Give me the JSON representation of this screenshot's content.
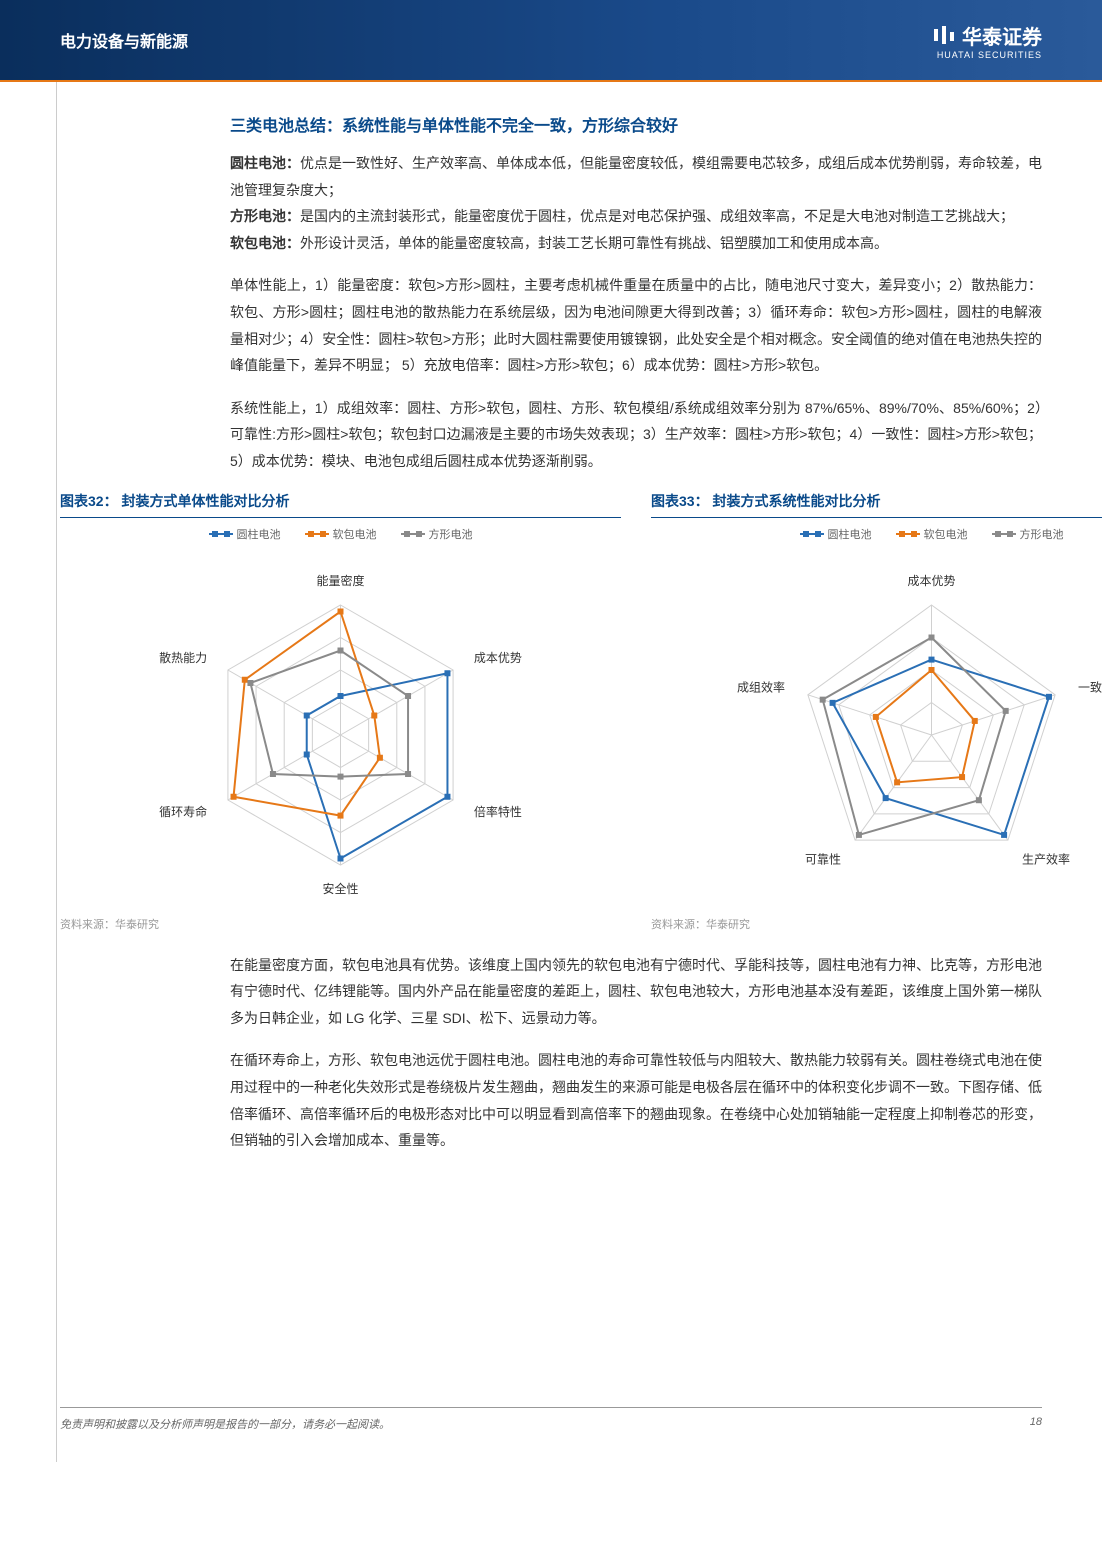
{
  "header": {
    "title": "电力设备与新能源",
    "logo_text": "华泰证券",
    "logo_sub": "HUATAI SECURITIES"
  },
  "section_title": "三类电池总结：系统性能与单体性能不完全一致，方形综合较好",
  "p1_label1": "圆柱电池：",
  "p1_text1": "优点是一致性好、生产效率高、单体成本低，但能量密度较低，模组需要电芯较多，成组后成本优势削弱，寿命较差，电池管理复杂度大；",
  "p1_label2": "方形电池：",
  "p1_text2": "是国内的主流封装形式，能量密度优于圆柱，优点是对电芯保护强、成组效率高，不足是大电池对制造工艺挑战大；",
  "p1_label3": "软包电池：",
  "p1_text3": "外形设计灵活，单体的能量密度较高，封装工艺长期可靠性有挑战、铝塑膜加工和使用成本高。",
  "p2": "单体性能上，1）能量密度：软包>方形>圆柱，主要考虑机械件重量在质量中的占比，随电池尺寸变大，差异变小；2）散热能力：软包、方形>圆柱；圆柱电池的散热能力在系统层级，因为电池间隙更大得到改善；3）循环寿命：软包>方形>圆柱，圆柱的电解液量相对少；4）安全性：圆柱>软包>方形；此时大圆柱需要使用镀镍钢，此处安全是个相对概念。安全阈值的绝对值在电池热失控的峰值能量下，差异不明显； 5）充放电倍率：圆柱>方形>软包；6）成本优势：圆柱>方形>软包。",
  "p3": "系统性能上，1）成组效率：圆柱、方形>软包，圆柱、方形、软包模组/系统成组效率分别为 87%/65%、89%/70%、85%/60%；2）可靠性:方形>圆柱>软包；软包封口边漏液是主要的市场失效表现；3）生产效率：圆柱>方形>软包；4）一致性：圆柱>方形>软包；5）成本优势：模块、电池包成组后圆柱成本优势逐渐削弱。",
  "p4": "在能量密度方面，软包电池具有优势。该维度上国内领先的软包电池有宁德时代、孚能科技等，圆柱电池有力神、比克等，方形电池有宁德时代、亿纬锂能等。国内外产品在能量密度的差距上，圆柱、软包电池较大，方形电池基本没有差距，该维度上国外第一梯队多为日韩企业，如 LG 化学、三星 SDI、松下、远景动力等。",
  "p5": "在循环寿命上，方形、软包电池远优于圆柱电池。圆柱电池的寿命可靠性较低与内阻较大、散热能力较弱有关。圆柱卷绕式电池在使用过程中的一种老化失效形式是卷绕极片发生翘曲，翘曲发生的来源可能是电极各层在循环中的体积变化步调不一致。下图存储、低倍率循环、高倍率循环后的电极形态对比中可以明显看到高倍率下的翘曲现象。在卷绕中心处加销轴能一定程度上抑制卷芯的形变，但销轴的引入会增加成本、重量等。",
  "chart32": {
    "title": "图表32： 封装方式单体性能对比分析",
    "source": "资料来源：华泰研究",
    "type": "radar",
    "axes": [
      "能量密度",
      "成本优势",
      "倍率特性",
      "安全性",
      "循环寿命",
      "散热能力"
    ],
    "rings": 4,
    "series": [
      {
        "name": "圆柱电池",
        "color": "#2a6fb5",
        "values": [
          0.3,
          0.95,
          0.95,
          0.95,
          0.3,
          0.3
        ]
      },
      {
        "name": "软包电池",
        "color": "#e67817",
        "values": [
          0.95,
          0.3,
          0.35,
          0.62,
          0.95,
          0.85
        ]
      },
      {
        "name": "方形电池",
        "color": "#8a8a8a",
        "values": [
          0.65,
          0.6,
          0.6,
          0.32,
          0.6,
          0.8
        ]
      }
    ],
    "grid_color": "#d0d0d0",
    "label_fontsize": 12
  },
  "chart33": {
    "title": "图表33： 封装方式系统性能对比分析",
    "source": "资料来源：华泰研究",
    "type": "radar",
    "axes": [
      "成本优势",
      "一致性",
      "生产效率",
      "可靠性",
      "成组效率"
    ],
    "rings": 4,
    "series": [
      {
        "name": "圆柱电池",
        "color": "#2a6fb5",
        "values": [
          0.58,
          0.95,
          0.95,
          0.6,
          0.8
        ]
      },
      {
        "name": "软包电池",
        "color": "#e67817",
        "values": [
          0.5,
          0.35,
          0.4,
          0.45,
          0.45
        ]
      },
      {
        "name": "方形电池",
        "color": "#8a8a8a",
        "values": [
          0.75,
          0.6,
          0.62,
          0.95,
          0.88
        ]
      }
    ],
    "grid_color": "#d0d0d0",
    "label_fontsize": 12
  },
  "legend": {
    "l1": "圆柱电池",
    "l2": "软包电池",
    "l3": "方形电池",
    "c1": "#2a6fb5",
    "c2": "#e67817",
    "c3": "#8a8a8a"
  },
  "footer": {
    "disclaimer": "免责声明和披露以及分析师声明是报告的一部分，请务必一起阅读。",
    "page": "18"
  }
}
